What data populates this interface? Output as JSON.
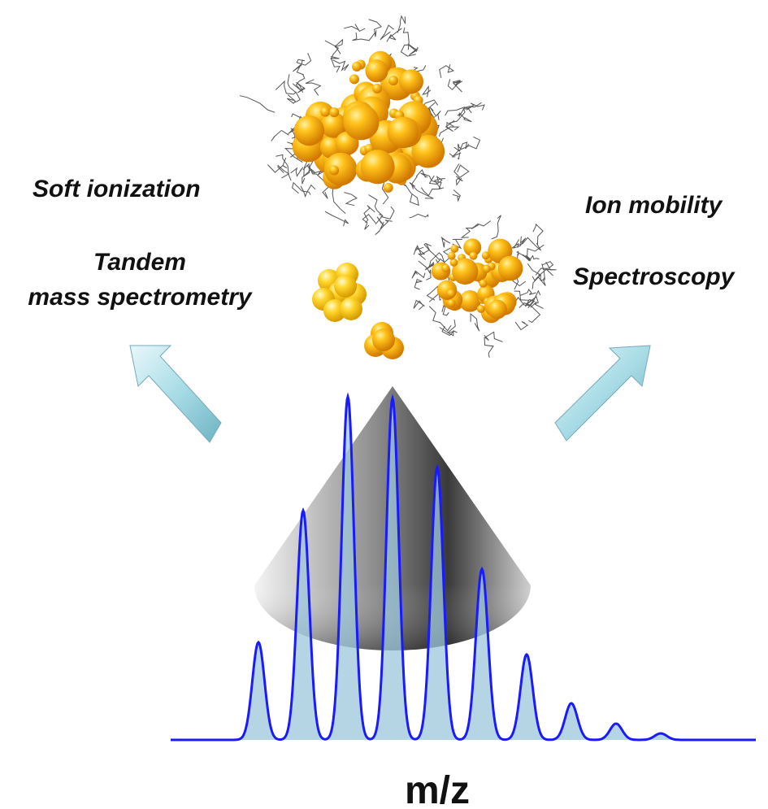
{
  "labels": {
    "soft_ionization": "Soft ionization",
    "tandem": [
      "Tandem",
      "mass spectrometry"
    ],
    "ion_mobility": "Ion mobility",
    "spectroscopy": "Spectroscopy"
  },
  "axis_label": "m/z"
}
